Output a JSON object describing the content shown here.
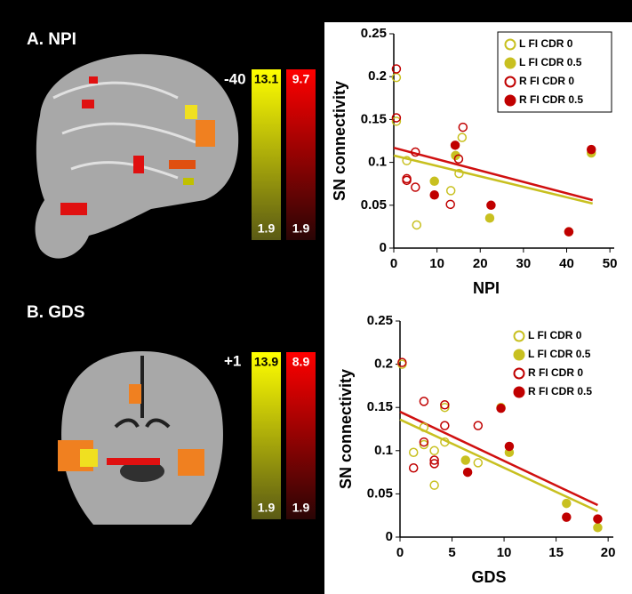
{
  "panels": [
    {
      "label": "A. NPI",
      "slice": "-40",
      "colorbars": [
        {
          "max": "13.1",
          "min": "1.9"
        },
        {
          "max": "9.7",
          "min": "1.9"
        }
      ]
    },
    {
      "label": "B. GDS",
      "slice": "+1",
      "colorbars": [
        {
          "max": "13.9",
          "min": "1.9"
        },
        {
          "max": "8.9",
          "min": "1.9"
        }
      ]
    }
  ],
  "chart_data": [
    {
      "type": "scatter",
      "x_label": "NPI",
      "y_label": "SN connectivity",
      "xlim": [
        0,
        51
      ],
      "ylim": [
        0,
        0.25
      ],
      "xticks": [
        0,
        10,
        20,
        30,
        40,
        50
      ],
      "yticks": [
        0,
        0.05,
        0.1,
        0.15,
        0.2,
        0.25
      ],
      "legend_box": true,
      "series": [
        {
          "name": "L FI CDR 0",
          "color": "#c8c020",
          "filled": false,
          "x": [
            0.6,
            0.6,
            3,
            5.3,
            13.2,
            15.1,
            15.8
          ],
          "values": [
            0.199,
            0.148,
            0.102,
            0.027,
            0.067,
            0.087,
            0.129
          ]
        },
        {
          "name": "L FI CDR 0.5",
          "color": "#c8c020",
          "filled": true,
          "x": [
            9.4,
            14.3,
            22.2,
            40.5,
            45.7
          ],
          "values": [
            0.078,
            0.108,
            0.035,
            0.019,
            0.111
          ]
        },
        {
          "name": "R FI CDR 0",
          "color": "#c00000",
          "filled": false,
          "x": [
            0.6,
            0.6,
            3,
            3,
            5,
            5,
            13.1,
            15,
            16
          ],
          "values": [
            0.209,
            0.152,
            0.081,
            0.079,
            0.112,
            0.071,
            0.051,
            0.104,
            0.141
          ]
        },
        {
          "name": "R FI CDR 0.5",
          "color": "#c00000",
          "filled": true,
          "x": [
            9.4,
            14.2,
            22.5,
            40.5,
            45.7
          ],
          "values": [
            0.062,
            0.12,
            0.05,
            0.019,
            0.115
          ]
        }
      ],
      "lines": [
        {
          "color": "#c8c020",
          "x": [
            0,
            46
          ],
          "values": [
            0.108,
            0.052
          ]
        },
        {
          "color": "#d01010",
          "x": [
            0,
            46
          ],
          "values": [
            0.117,
            0.056
          ]
        }
      ]
    },
    {
      "type": "scatter",
      "x_label": "GDS",
      "y_label": "SN connectivity",
      "xlim": [
        0,
        20.5
      ],
      "ylim": [
        0,
        0.25
      ],
      "xticks": [
        0,
        5,
        10,
        15,
        20
      ],
      "yticks": [
        0,
        0.05,
        0.1,
        0.15,
        0.2,
        0.25
      ],
      "legend_box": false,
      "series": [
        {
          "name": "L FI CDR 0",
          "color": "#c8c020",
          "filled": false,
          "x": [
            0.2,
            1.3,
            2.3,
            2.3,
            3.3,
            3.3,
            4.3,
            4.3,
            7.5
          ],
          "values": [
            0.2,
            0.098,
            0.127,
            0.107,
            0.1,
            0.06,
            0.11,
            0.15,
            0.086
          ]
        },
        {
          "name": "L FI CDR 0.5",
          "color": "#c8c020",
          "filled": true,
          "x": [
            6.3,
            9.7,
            10.5,
            16,
            19
          ],
          "values": [
            0.089,
            0.15,
            0.098,
            0.039,
            0.011
          ]
        },
        {
          "name": "R FI CDR 0",
          "color": "#c00000",
          "filled": false,
          "x": [
            0.2,
            1.3,
            2.3,
            2.3,
            3.3,
            3.3,
            4.3,
            4.3,
            7.5
          ],
          "values": [
            0.202,
            0.08,
            0.157,
            0.11,
            0.089,
            0.085,
            0.153,
            0.129,
            0.129
          ]
        },
        {
          "name": "R FI CDR 0.5",
          "color": "#c00000",
          "filled": true,
          "x": [
            6.5,
            9.7,
            10.5,
            16,
            19
          ],
          "values": [
            0.075,
            0.149,
            0.105,
            0.023,
            0.021
          ]
        }
      ],
      "lines": [
        {
          "color": "#c8c020",
          "x": [
            0,
            19
          ],
          "values": [
            0.136,
            0.03
          ]
        },
        {
          "color": "#d01010",
          "x": [
            0,
            19
          ],
          "values": [
            0.145,
            0.037
          ]
        }
      ]
    }
  ]
}
